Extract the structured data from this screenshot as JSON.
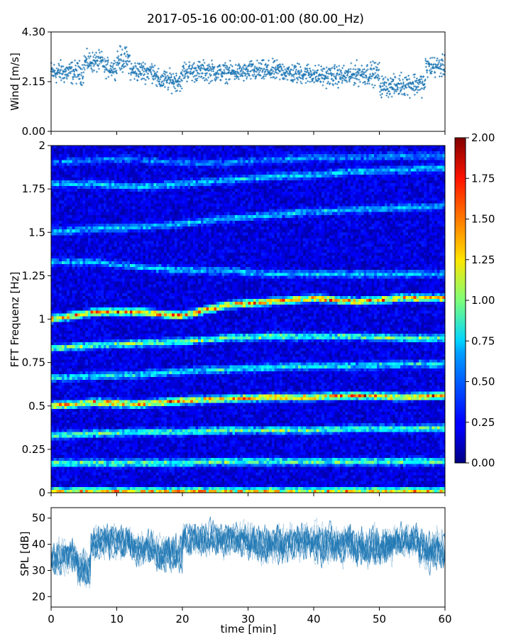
{
  "figure": {
    "title": "2017-05-16 00:00-01:00 (80.00_Hz)"
  },
  "chart_data": [
    {
      "type": "scatter",
      "panel": "wind",
      "ylabel": "Wind [m/s]",
      "ylim": [
        0,
        4.3
      ],
      "yticks": [
        "0.00",
        "2.15",
        "4.30"
      ],
      "xlim": [
        0,
        60
      ],
      "color": "#1f77b4",
      "marker": "+",
      "grid": false,
      "segments": [
        {
          "x": [
            0,
            5
          ],
          "mean": 2.55,
          "spread": 0.55
        },
        {
          "x": [
            5,
            8
          ],
          "mean": 3.0,
          "spread": 0.5
        },
        {
          "x": [
            8,
            10
          ],
          "mean": 2.75,
          "spread": 0.45
        },
        {
          "x": [
            10,
            12
          ],
          "mean": 3.1,
          "spread": 0.6
        },
        {
          "x": [
            12,
            16
          ],
          "mean": 2.6,
          "spread": 0.5
        },
        {
          "x": [
            16,
            20
          ],
          "mean": 2.2,
          "spread": 0.5
        },
        {
          "x": [
            20,
            25
          ],
          "mean": 2.6,
          "spread": 0.5
        },
        {
          "x": [
            25,
            30
          ],
          "mean": 2.55,
          "spread": 0.45
        },
        {
          "x": [
            30,
            36
          ],
          "mean": 2.6,
          "spread": 0.5
        },
        {
          "x": [
            36,
            40
          ],
          "mean": 2.5,
          "spread": 0.5
        },
        {
          "x": [
            40,
            46
          ],
          "mean": 2.4,
          "spread": 0.5
        },
        {
          "x": [
            46,
            50
          ],
          "mean": 2.5,
          "spread": 0.55
        },
        {
          "x": [
            50,
            53
          ],
          "mean": 1.95,
          "spread": 0.5
        },
        {
          "x": [
            53,
            57
          ],
          "mean": 2.05,
          "spread": 0.55
        },
        {
          "x": [
            57,
            60
          ],
          "mean": 2.8,
          "spread": 0.5
        }
      ]
    },
    {
      "type": "heatmap",
      "panel": "spectrogram",
      "ylabel": "FFT Frequenz [Hz]",
      "ylim": [
        0,
        2
      ],
      "yticks": [
        "0",
        "0.25",
        "0.5",
        "0.75",
        "1",
        "1.25",
        "1.5",
        "1.75",
        "2"
      ],
      "xlim": [
        0,
        60
      ],
      "colormap": "jet",
      "colorbar": {
        "range": [
          0,
          2
        ],
        "ticks": [
          "0.00",
          "0.25",
          "0.50",
          "0.75",
          "1.00",
          "1.25",
          "1.50",
          "1.75",
          "2.00"
        ]
      },
      "background_level": 0.18,
      "bands": [
        {
          "f": [
            1.0,
            1.04,
            1.04,
            1.02,
            1.08,
            1.1,
            1.12,
            1.1,
            1.12,
            1.12
          ],
          "level": 1.55
        },
        {
          "f": [
            0.83,
            0.85,
            0.86,
            0.87,
            0.89,
            0.9,
            0.9,
            0.9,
            0.89,
            0.89
          ],
          "level": 0.95
        },
        {
          "f": [
            0.5,
            0.52,
            0.51,
            0.53,
            0.54,
            0.55,
            0.55,
            0.56,
            0.55,
            0.56
          ],
          "level": 1.5
        },
        {
          "f": [
            0.33,
            0.34,
            0.35,
            0.35,
            0.36,
            0.36,
            0.36,
            0.37,
            0.37,
            0.37
          ],
          "level": 0.9
        },
        {
          "f": [
            0.17,
            0.17,
            0.17,
            0.17,
            0.18,
            0.18,
            0.18,
            0.18,
            0.18,
            0.18
          ],
          "level": 0.9
        },
        {
          "f": [
            0.01,
            0.01,
            0.01,
            0.01,
            0.01,
            0.01,
            0.01,
            0.01,
            0.01,
            0.01
          ],
          "level": 1.3
        },
        {
          "f": [
            0.66,
            0.67,
            0.68,
            0.7,
            0.71,
            0.72,
            0.73,
            0.73,
            0.74,
            0.74
          ],
          "level": 0.7
        },
        {
          "f": [
            1.5,
            1.52,
            1.53,
            1.55,
            1.58,
            1.6,
            1.62,
            1.63,
            1.64,
            1.65
          ],
          "level": 0.55
        },
        {
          "f": [
            1.33,
            1.33,
            1.3,
            1.28,
            1.28,
            1.26,
            1.26,
            1.26,
            1.26,
            1.26
          ],
          "level": 0.55
        },
        {
          "f": [
            1.78,
            1.78,
            1.76,
            1.78,
            1.8,
            1.82,
            1.83,
            1.85,
            1.86,
            1.87
          ],
          "level": 0.6
        },
        {
          "f": [
            1.9,
            1.92,
            1.92,
            1.9,
            1.9,
            1.92,
            1.93,
            1.93,
            1.94,
            1.94
          ],
          "level": 0.4
        }
      ]
    },
    {
      "type": "line",
      "panel": "spl",
      "ylabel": "SPL [dB]",
      "xlabel": "time [min]",
      "ylim": [
        16,
        54
      ],
      "yticks": [
        "20",
        "30",
        "40",
        "50"
      ],
      "xlim": [
        0,
        60
      ],
      "xticks": [
        "0",
        "10",
        "20",
        "30",
        "40",
        "50",
        "60"
      ],
      "color": "#1f77b4",
      "grid": false,
      "segments": [
        {
          "x": [
            0,
            4
          ],
          "mean": 35,
          "spread": 6
        },
        {
          "x": [
            4,
            6
          ],
          "mean": 30,
          "spread": 7
        },
        {
          "x": [
            6,
            12
          ],
          "mean": 41,
          "spread": 6
        },
        {
          "x": [
            12,
            16
          ],
          "mean": 39,
          "spread": 6
        },
        {
          "x": [
            16,
            20
          ],
          "mean": 37,
          "spread": 7
        },
        {
          "x": [
            20,
            30
          ],
          "mean": 42,
          "spread": 6
        },
        {
          "x": [
            30,
            36
          ],
          "mean": 40,
          "spread": 7
        },
        {
          "x": [
            36,
            40
          ],
          "mean": 41,
          "spread": 6
        },
        {
          "x": [
            40,
            46
          ],
          "mean": 40,
          "spread": 7
        },
        {
          "x": [
            46,
            52
          ],
          "mean": 39,
          "spread": 7
        },
        {
          "x": [
            52,
            56
          ],
          "mean": 41,
          "spread": 6
        },
        {
          "x": [
            56,
            60
          ],
          "mean": 38,
          "spread": 7
        }
      ]
    }
  ]
}
